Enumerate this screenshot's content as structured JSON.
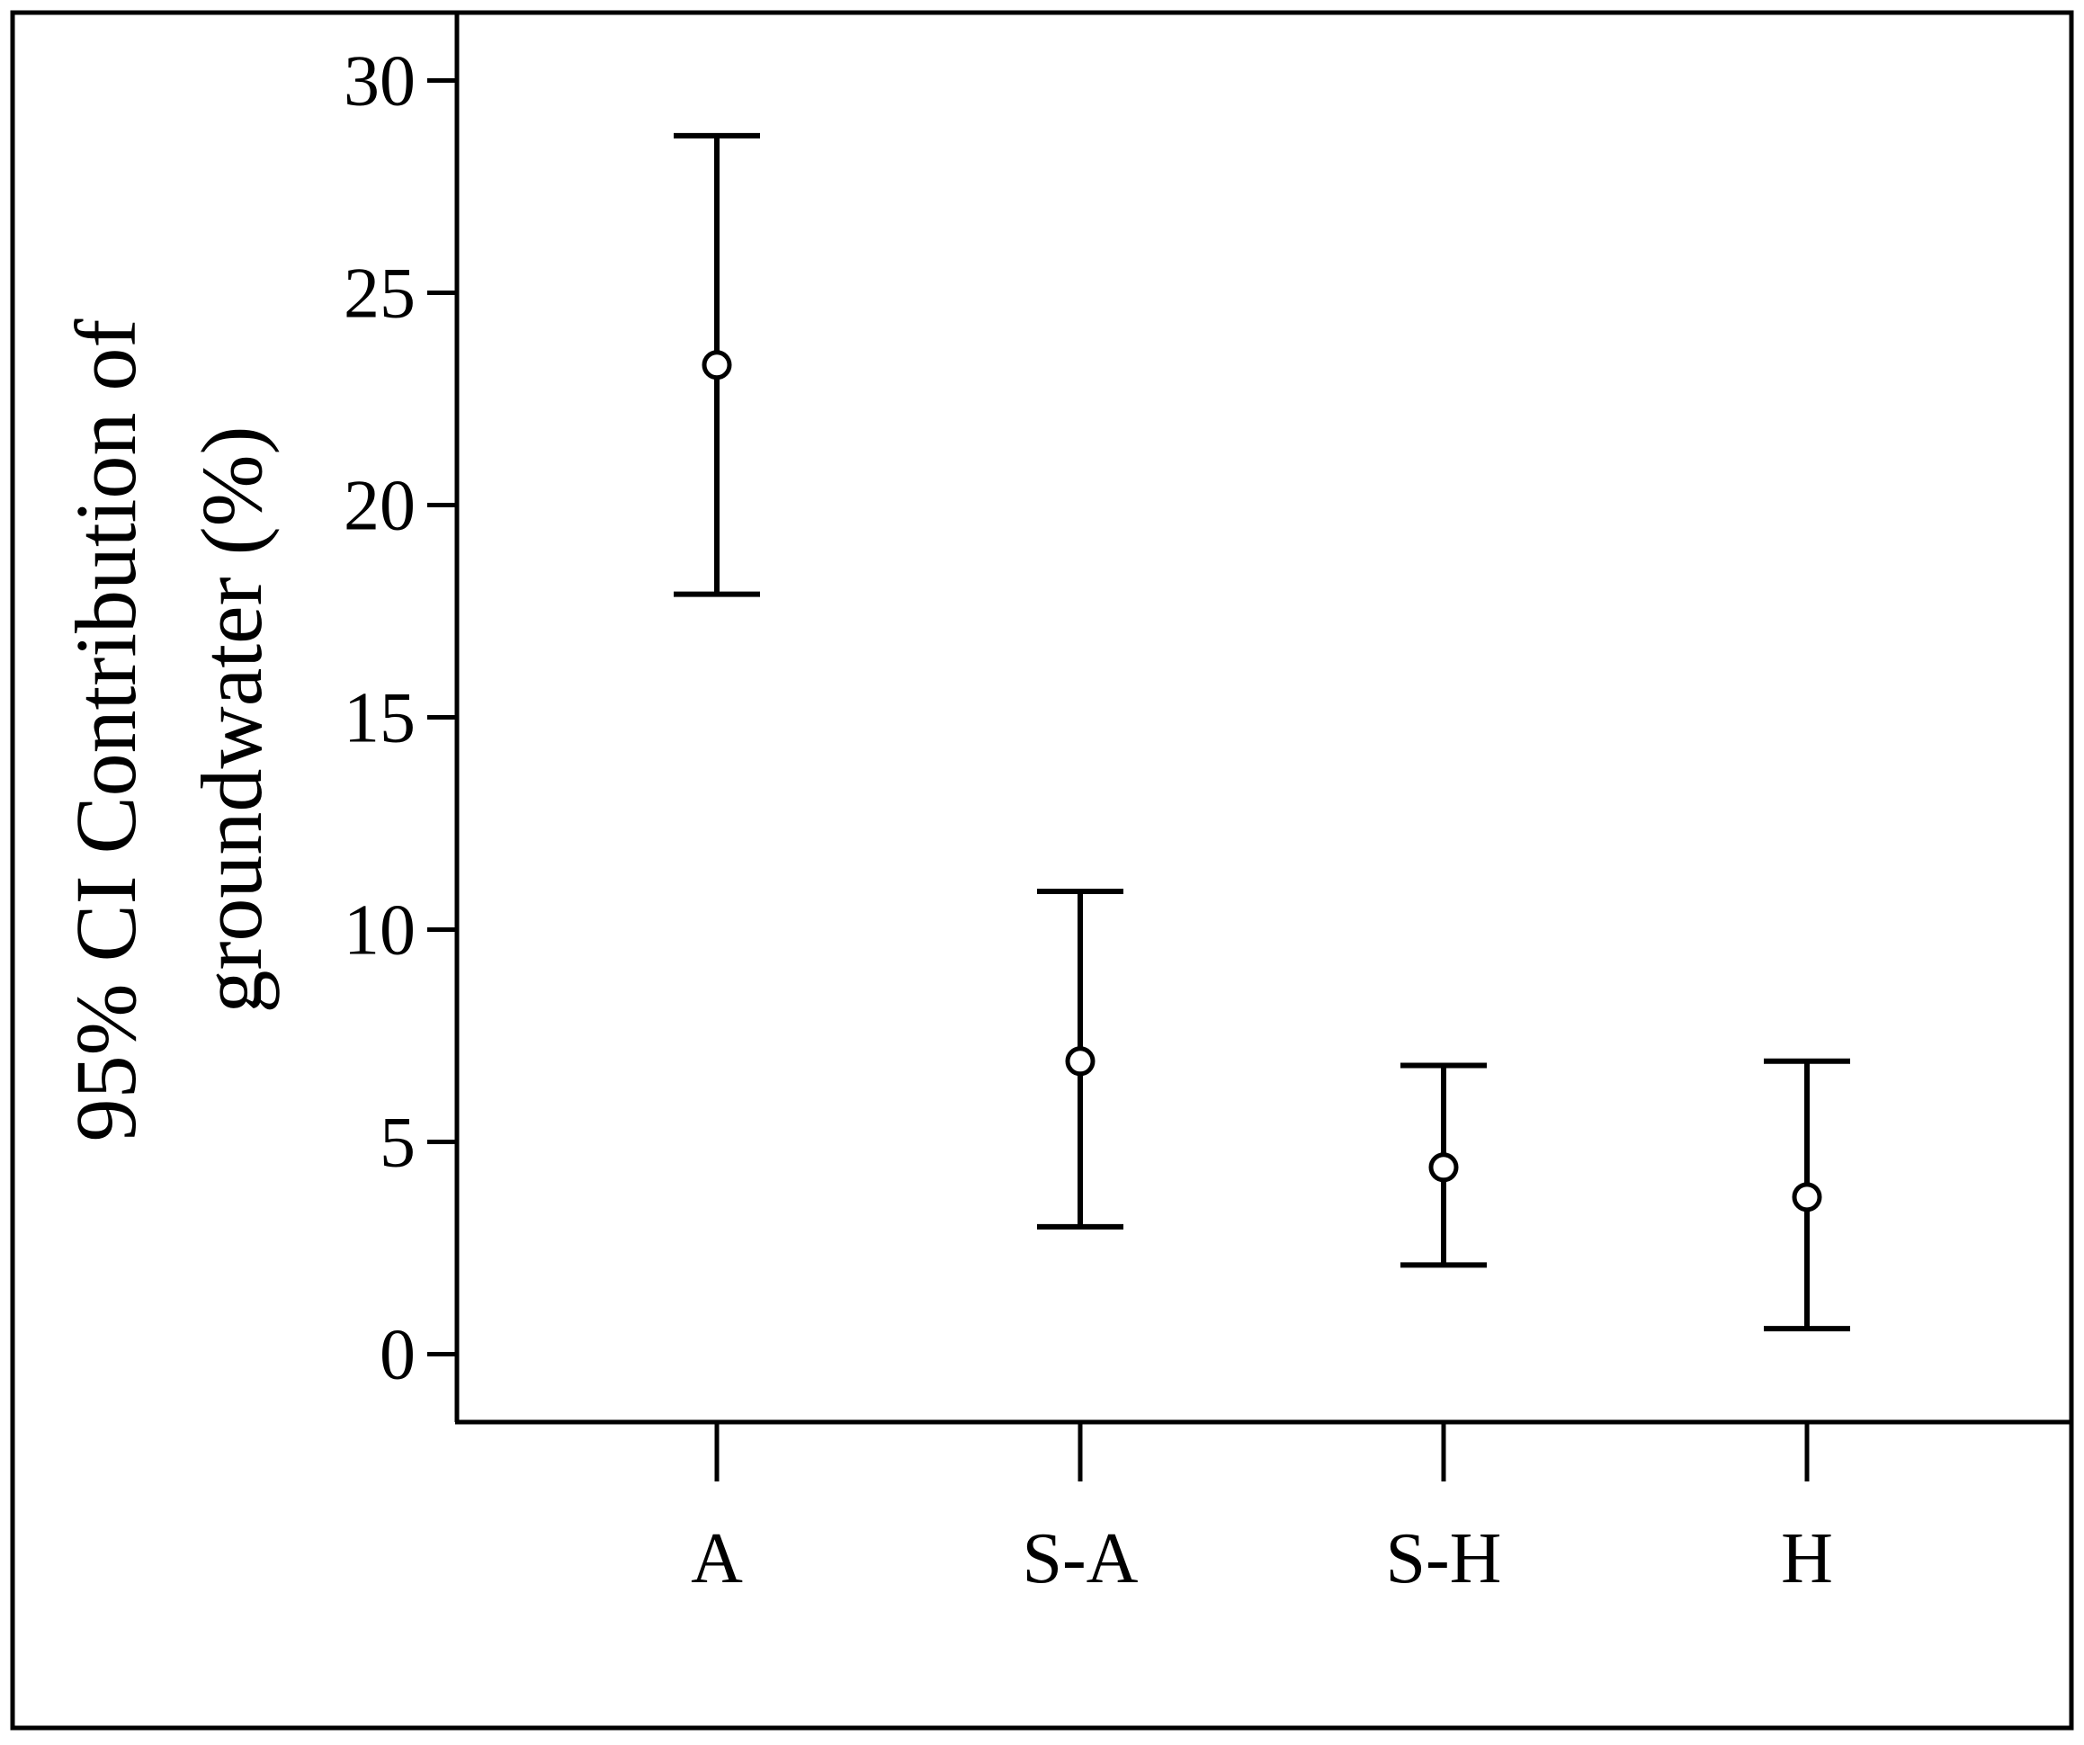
{
  "chart_data": {
    "type": "errorbar",
    "title": "",
    "xlabel": "",
    "ylabel_lines": [
      "95% CI Contribution of",
      "groundwater (%)"
    ],
    "categories": [
      "A",
      "S-A",
      "S-H",
      "H"
    ],
    "series": [
      {
        "mean": [
          23.3,
          6.9,
          4.4,
          3.7
        ],
        "lower": [
          17.9,
          3.0,
          2.1,
          0.6
        ],
        "upper": [
          28.7,
          10.9,
          6.8,
          6.9
        ]
      }
    ],
    "yticks": [
      0,
      5,
      10,
      15,
      20,
      25,
      30
    ],
    "ylim": [
      -1.6,
      31.6
    ],
    "grid": false,
    "legend": "none"
  }
}
